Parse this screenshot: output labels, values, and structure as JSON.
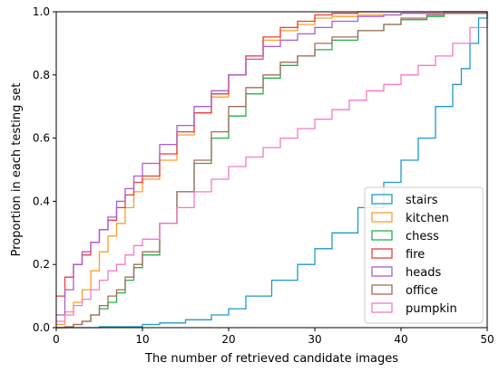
{
  "chart_data": {
    "type": "line",
    "step": true,
    "title": "",
    "xlabel": "The number of retrieved candidate images",
    "ylabel": "Proportion in each testing set",
    "xlim": [
      0,
      50
    ],
    "ylim": [
      0,
      1.0
    ],
    "xticks": [
      "0",
      "10",
      "20",
      "30",
      "40",
      "50"
    ],
    "yticks": [
      "0.0",
      "0.2",
      "0.4",
      "0.6",
      "0.8",
      "1.0"
    ],
    "grid": false,
    "legend_position": "lower-right",
    "series": [
      {
        "name": "stairs",
        "color": "#1f9ac9",
        "points": [
          [
            0,
            0
          ],
          [
            5,
            0.003
          ],
          [
            10,
            0.01
          ],
          [
            12,
            0.015
          ],
          [
            15,
            0.025
          ],
          [
            18,
            0.04
          ],
          [
            20,
            0.06
          ],
          [
            22,
            0.1
          ],
          [
            25,
            0.15
          ],
          [
            28,
            0.2
          ],
          [
            30,
            0.25
          ],
          [
            32,
            0.3
          ],
          [
            35,
            0.38
          ],
          [
            38,
            0.46
          ],
          [
            40,
            0.53
          ],
          [
            42,
            0.6
          ],
          [
            44,
            0.7
          ],
          [
            46,
            0.77
          ],
          [
            47,
            0.82
          ],
          [
            48,
            0.9
          ],
          [
            49,
            0.98
          ],
          [
            50,
            1.0
          ]
        ]
      },
      {
        "name": "kitchen",
        "color": "#ff9f2a",
        "points": [
          [
            0,
            0.01
          ],
          [
            1,
            0.05
          ],
          [
            2,
            0.08
          ],
          [
            3,
            0.12
          ],
          [
            4,
            0.18
          ],
          [
            5,
            0.24
          ],
          [
            6,
            0.29
          ],
          [
            7,
            0.33
          ],
          [
            8,
            0.38
          ],
          [
            9,
            0.43
          ],
          [
            10,
            0.47
          ],
          [
            12,
            0.53
          ],
          [
            14,
            0.61
          ],
          [
            16,
            0.68
          ],
          [
            18,
            0.73
          ],
          [
            20,
            0.8
          ],
          [
            22,
            0.86
          ],
          [
            24,
            0.91
          ],
          [
            26,
            0.94
          ],
          [
            28,
            0.96
          ],
          [
            30,
            0.98
          ],
          [
            32,
            0.985
          ],
          [
            35,
            0.99
          ],
          [
            40,
            0.995
          ],
          [
            45,
            1.0
          ],
          [
            50,
            1.0
          ]
        ]
      },
      {
        "name": "chess",
        "color": "#22b14c",
        "points": [
          [
            0,
            0
          ],
          [
            1,
            0.002
          ],
          [
            2,
            0.01
          ],
          [
            3,
            0.02
          ],
          [
            4,
            0.04
          ],
          [
            5,
            0.06
          ],
          [
            6,
            0.08
          ],
          [
            7,
            0.11
          ],
          [
            8,
            0.15
          ],
          [
            9,
            0.19
          ],
          [
            10,
            0.23
          ],
          [
            12,
            0.33
          ],
          [
            14,
            0.43
          ],
          [
            16,
            0.52
          ],
          [
            18,
            0.6
          ],
          [
            20,
            0.67
          ],
          [
            22,
            0.74
          ],
          [
            24,
            0.79
          ],
          [
            26,
            0.83
          ],
          [
            28,
            0.86
          ],
          [
            30,
            0.88
          ],
          [
            32,
            0.91
          ],
          [
            35,
            0.94
          ],
          [
            38,
            0.96
          ],
          [
            40,
            0.975
          ],
          [
            43,
            0.985
          ],
          [
            45,
            0.995
          ],
          [
            50,
            1.0
          ]
        ]
      },
      {
        "name": "fire",
        "color": "#ee3b3b",
        "points": [
          [
            0,
            0.1
          ],
          [
            1,
            0.16
          ],
          [
            2,
            0.2
          ],
          [
            3,
            0.23
          ],
          [
            4,
            0.27
          ],
          [
            5,
            0.31
          ],
          [
            6,
            0.34
          ],
          [
            7,
            0.38
          ],
          [
            8,
            0.42
          ],
          [
            9,
            0.46
          ],
          [
            10,
            0.48
          ],
          [
            12,
            0.55
          ],
          [
            14,
            0.62
          ],
          [
            16,
            0.68
          ],
          [
            18,
            0.74
          ],
          [
            20,
            0.8
          ],
          [
            22,
            0.86
          ],
          [
            24,
            0.92
          ],
          [
            26,
            0.95
          ],
          [
            28,
            0.97
          ],
          [
            30,
            0.99
          ],
          [
            32,
            0.995
          ],
          [
            35,
            1.0
          ],
          [
            50,
            1.0
          ]
        ]
      },
      {
        "name": "heads",
        "color": "#a95dd2",
        "points": [
          [
            0,
            0.04
          ],
          [
            1,
            0.12
          ],
          [
            2,
            0.2
          ],
          [
            3,
            0.24
          ],
          [
            4,
            0.27
          ],
          [
            5,
            0.31
          ],
          [
            6,
            0.35
          ],
          [
            7,
            0.4
          ],
          [
            8,
            0.44
          ],
          [
            9,
            0.48
          ],
          [
            10,
            0.52
          ],
          [
            12,
            0.58
          ],
          [
            14,
            0.64
          ],
          [
            16,
            0.7
          ],
          [
            18,
            0.75
          ],
          [
            20,
            0.8
          ],
          [
            22,
            0.85
          ],
          [
            24,
            0.89
          ],
          [
            26,
            0.91
          ],
          [
            28,
            0.93
          ],
          [
            30,
            0.95
          ],
          [
            32,
            0.97
          ],
          [
            35,
            0.985
          ],
          [
            38,
            0.99
          ],
          [
            40,
            0.995
          ],
          [
            45,
            1.0
          ],
          [
            50,
            1.0
          ]
        ]
      },
      {
        "name": "office",
        "color": "#a86b5c",
        "points": [
          [
            0,
            0
          ],
          [
            1,
            0.003
          ],
          [
            2,
            0.01
          ],
          [
            3,
            0.02
          ],
          [
            4,
            0.04
          ],
          [
            5,
            0.07
          ],
          [
            6,
            0.1
          ],
          [
            7,
            0.12
          ],
          [
            8,
            0.16
          ],
          [
            9,
            0.2
          ],
          [
            10,
            0.24
          ],
          [
            12,
            0.33
          ],
          [
            14,
            0.43
          ],
          [
            16,
            0.53
          ],
          [
            18,
            0.62
          ],
          [
            20,
            0.7
          ],
          [
            22,
            0.76
          ],
          [
            24,
            0.8
          ],
          [
            26,
            0.84
          ],
          [
            28,
            0.86
          ],
          [
            30,
            0.9
          ],
          [
            32,
            0.92
          ],
          [
            35,
            0.94
          ],
          [
            38,
            0.96
          ],
          [
            40,
            0.98
          ],
          [
            43,
            0.99
          ],
          [
            45,
            0.995
          ],
          [
            50,
            1.0
          ]
        ]
      },
      {
        "name": "pumpkin",
        "color": "#f57ac9",
        "points": [
          [
            0,
            0.02
          ],
          [
            1,
            0.04
          ],
          [
            2,
            0.07
          ],
          [
            3,
            0.09
          ],
          [
            4,
            0.12
          ],
          [
            5,
            0.15
          ],
          [
            6,
            0.18
          ],
          [
            7,
            0.2
          ],
          [
            8,
            0.23
          ],
          [
            9,
            0.26
          ],
          [
            10,
            0.28
          ],
          [
            12,
            0.33
          ],
          [
            14,
            0.38
          ],
          [
            16,
            0.43
          ],
          [
            18,
            0.47
          ],
          [
            20,
            0.51
          ],
          [
            22,
            0.54
          ],
          [
            24,
            0.57
          ],
          [
            26,
            0.6
          ],
          [
            28,
            0.63
          ],
          [
            30,
            0.66
          ],
          [
            32,
            0.69
          ],
          [
            34,
            0.72
          ],
          [
            36,
            0.75
          ],
          [
            38,
            0.77
          ],
          [
            40,
            0.8
          ],
          [
            42,
            0.83
          ],
          [
            44,
            0.86
          ],
          [
            46,
            0.9
          ],
          [
            48,
            0.95
          ],
          [
            50,
            1.0
          ]
        ]
      }
    ]
  }
}
